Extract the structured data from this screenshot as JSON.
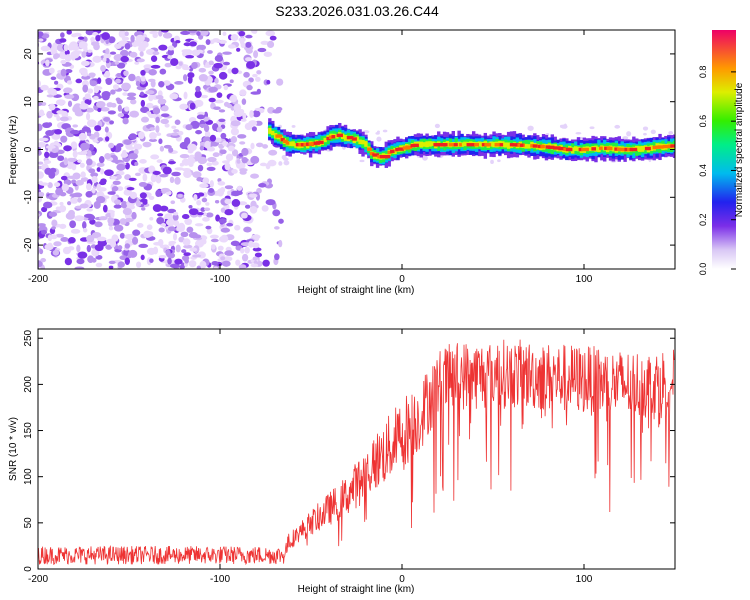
{
  "chart_data": [
    {
      "type": "heatmap",
      "title": "S233.2026.031.03.26.C44",
      "xlabel": "Height of straight line (km)",
      "ylabel": "Frequency (Hz)",
      "xlim": [
        -200,
        150
      ],
      "ylim": [
        -25,
        25
      ],
      "xticks": [
        -200,
        -100,
        0,
        100
      ],
      "xtick_labels": [
        "-200",
        "-100",
        "0",
        "100"
      ],
      "yticks": [
        -20,
        -10,
        0,
        10,
        20
      ],
      "ytick_labels": [
        "-20",
        "-10",
        "0",
        "10",
        "20"
      ],
      "noise_region_x": [
        -200,
        -72
      ],
      "ridge": {
        "x": [
          -73,
          -68,
          -62,
          -55,
          -50,
          -45,
          -40,
          -35,
          -30,
          -25,
          -20,
          -17,
          -13,
          -10,
          -7,
          -3,
          0,
          5,
          10,
          20,
          40,
          60,
          70,
          80,
          90,
          100,
          110,
          120,
          130,
          140,
          150
        ],
        "freq": [
          4,
          2.5,
          1,
          1,
          1.2,
          1.5,
          2.5,
          3,
          2.5,
          2,
          1,
          -1,
          -1.5,
          -1.5,
          -0.5,
          0,
          0.2,
          0.8,
          1,
          1,
          1,
          1,
          0.8,
          0.5,
          0,
          0,
          0.3,
          0,
          0,
          0.5,
          0.8
        ]
      },
      "colorbar": {
        "label": "Normalized spectral amplitude",
        "ticks": [
          0.0,
          0.2,
          0.4,
          0.6,
          0.8
        ],
        "tick_labels": [
          "0.0",
          "0.2",
          "0.4",
          "0.6",
          "0.8"
        ],
        "range": [
          0,
          0.97
        ]
      }
    },
    {
      "type": "line",
      "xlabel": "Height of straight line (km)",
      "ylabel": "SNR (10 * v/v)",
      "xlim": [
        -200,
        150
      ],
      "ylim": [
        0,
        260
      ],
      "xticks": [
        -200,
        -100,
        0,
        100
      ],
      "xtick_labels": [
        "-200",
        "-100",
        "0",
        "100"
      ],
      "yticks": [
        0,
        50,
        100,
        150,
        200,
        250
      ],
      "ytick_labels": [
        "0",
        "50",
        "100",
        "150",
        "200",
        "250"
      ],
      "color": "#ee3333",
      "trend": {
        "x": [
          -200,
          -150,
          -100,
          -65,
          -62,
          -50,
          -30,
          -15,
          0,
          10,
          15,
          20,
          30,
          40,
          60,
          80,
          100,
          120,
          140,
          150
        ],
        "y": [
          15,
          15,
          15,
          15,
          30,
          50,
          80,
          115,
          145,
          165,
          185,
          200,
          210,
          210,
          212,
          208,
          205,
          200,
          200,
          205
        ]
      }
    }
  ]
}
